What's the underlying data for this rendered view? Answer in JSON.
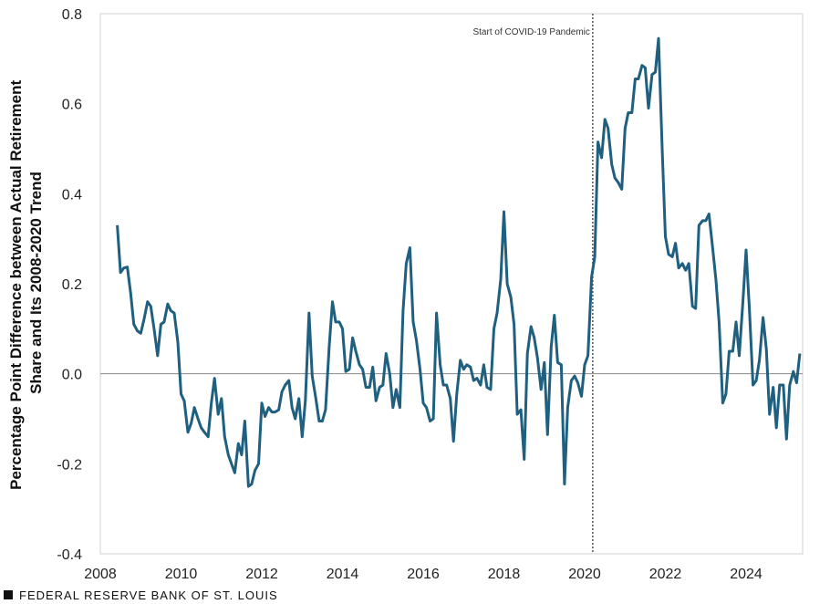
{
  "chart_data": {
    "type": "line",
    "ylabel_lines": [
      "Percentage Point Difference between Actual Retirement",
      "Share and Its 2008-2020 Trend"
    ],
    "xlim": [
      2008,
      2025.4
    ],
    "ylim": [
      -0.4,
      0.8
    ],
    "x_ticks": [
      "2008",
      "2010",
      "2012",
      "2014",
      "2016",
      "2018",
      "2020",
      "2022",
      "2024"
    ],
    "y_ticks": [
      "-0.4",
      "-0.2",
      "0.0",
      "0.2",
      "0.4",
      "0.6",
      "0.8"
    ],
    "annotation": {
      "text": "Start of COVID-19 Pandemic",
      "x": 2020.2
    },
    "line_color": "#1f5f7f",
    "series": [
      {
        "points": [
          [
            2008.42,
            0.33
          ],
          [
            2008.5,
            0.225
          ],
          [
            2008.58,
            0.235
          ],
          [
            2008.67,
            0.237
          ],
          [
            2008.75,
            0.18
          ],
          [
            2008.83,
            0.11
          ],
          [
            2008.92,
            0.095
          ],
          [
            2009.0,
            0.09
          ],
          [
            2009.08,
            0.12
          ],
          [
            2009.17,
            0.16
          ],
          [
            2009.25,
            0.15
          ],
          [
            2009.33,
            0.1
          ],
          [
            2009.42,
            0.04
          ],
          [
            2009.5,
            0.11
          ],
          [
            2009.58,
            0.115
          ],
          [
            2009.67,
            0.155
          ],
          [
            2009.75,
            0.14
          ],
          [
            2009.83,
            0.135
          ],
          [
            2009.92,
            0.07
          ],
          [
            2010.0,
            -0.045
          ],
          [
            2010.08,
            -0.06
          ],
          [
            2010.17,
            -0.13
          ],
          [
            2010.25,
            -0.11
          ],
          [
            2010.33,
            -0.075
          ],
          [
            2010.42,
            -0.1
          ],
          [
            2010.5,
            -0.12
          ],
          [
            2010.58,
            -0.13
          ],
          [
            2010.67,
            -0.14
          ],
          [
            2010.75,
            -0.065
          ],
          [
            2010.83,
            -0.01
          ],
          [
            2010.92,
            -0.09
          ],
          [
            2011.0,
            -0.055
          ],
          [
            2011.08,
            -0.14
          ],
          [
            2011.17,
            -0.18
          ],
          [
            2011.25,
            -0.2
          ],
          [
            2011.33,
            -0.22
          ],
          [
            2011.42,
            -0.155
          ],
          [
            2011.5,
            -0.18
          ],
          [
            2011.58,
            -0.105
          ],
          [
            2011.67,
            -0.25
          ],
          [
            2011.75,
            -0.245
          ],
          [
            2011.83,
            -0.215
          ],
          [
            2011.92,
            -0.2
          ],
          [
            2012.0,
            -0.065
          ],
          [
            2012.08,
            -0.095
          ],
          [
            2012.17,
            -0.075
          ],
          [
            2012.25,
            -0.085
          ],
          [
            2012.33,
            -0.085
          ],
          [
            2012.42,
            -0.08
          ],
          [
            2012.5,
            -0.04
          ],
          [
            2012.58,
            -0.025
          ],
          [
            2012.67,
            -0.015
          ],
          [
            2012.75,
            -0.075
          ],
          [
            2012.83,
            -0.1
          ],
          [
            2012.92,
            -0.055
          ],
          [
            2013.0,
            -0.14
          ],
          [
            2013.08,
            -0.06
          ],
          [
            2013.17,
            0.135
          ],
          [
            2013.25,
            -0.005
          ],
          [
            2013.33,
            -0.05
          ],
          [
            2013.42,
            -0.105
          ],
          [
            2013.5,
            -0.105
          ],
          [
            2013.58,
            -0.08
          ],
          [
            2013.67,
            0.06
          ],
          [
            2013.75,
            0.16
          ],
          [
            2013.83,
            0.115
          ],
          [
            2013.92,
            0.115
          ],
          [
            2014.0,
            0.1
          ],
          [
            2014.08,
            0.005
          ],
          [
            2014.17,
            0.01
          ],
          [
            2014.25,
            0.08
          ],
          [
            2014.33,
            0.05
          ],
          [
            2014.42,
            0.02
          ],
          [
            2014.5,
            0.01
          ],
          [
            2014.58,
            -0.03
          ],
          [
            2014.67,
            -0.03
          ],
          [
            2014.75,
            0.015
          ],
          [
            2014.83,
            -0.06
          ],
          [
            2014.92,
            -0.03
          ],
          [
            2015.0,
            -0.025
          ],
          [
            2015.08,
            0.045
          ],
          [
            2015.17,
            0.0
          ],
          [
            2015.25,
            -0.075
          ],
          [
            2015.33,
            -0.035
          ],
          [
            2015.42,
            -0.075
          ],
          [
            2015.5,
            0.14
          ],
          [
            2015.58,
            0.245
          ],
          [
            2015.67,
            0.28
          ],
          [
            2015.75,
            0.115
          ],
          [
            2015.83,
            0.075
          ],
          [
            2015.92,
            0.01
          ],
          [
            2016.0,
            -0.065
          ],
          [
            2016.08,
            -0.075
          ],
          [
            2016.17,
            -0.105
          ],
          [
            2016.25,
            -0.1
          ],
          [
            2016.33,
            0.135
          ],
          [
            2016.42,
            0.02
          ],
          [
            2016.5,
            -0.025
          ],
          [
            2016.58,
            -0.025
          ],
          [
            2016.67,
            -0.055
          ],
          [
            2016.75,
            -0.15
          ],
          [
            2016.83,
            -0.045
          ],
          [
            2016.92,
            0.03
          ],
          [
            2017.0,
            0.01
          ],
          [
            2017.08,
            0.02
          ],
          [
            2017.17,
            0.015
          ],
          [
            2017.25,
            -0.015
          ],
          [
            2017.33,
            -0.01
          ],
          [
            2017.42,
            -0.025
          ],
          [
            2017.5,
            0.02
          ],
          [
            2017.58,
            -0.03
          ],
          [
            2017.67,
            -0.035
          ],
          [
            2017.75,
            0.1
          ],
          [
            2017.83,
            0.135
          ],
          [
            2017.92,
            0.21
          ],
          [
            2018.0,
            0.36
          ],
          [
            2018.08,
            0.2
          ],
          [
            2018.17,
            0.17
          ],
          [
            2018.25,
            0.11
          ],
          [
            2018.33,
            -0.09
          ],
          [
            2018.42,
            -0.08
          ],
          [
            2018.5,
            -0.19
          ],
          [
            2018.58,
            0.045
          ],
          [
            2018.67,
            0.105
          ],
          [
            2018.75,
            0.08
          ],
          [
            2018.83,
            0.035
          ],
          [
            2018.92,
            -0.035
          ],
          [
            2019.0,
            0.025
          ],
          [
            2019.08,
            -0.135
          ],
          [
            2019.17,
            0.06
          ],
          [
            2019.25,
            0.13
          ],
          [
            2019.33,
            0.025
          ],
          [
            2019.42,
            0.02
          ],
          [
            2019.5,
            -0.245
          ],
          [
            2019.58,
            -0.075
          ],
          [
            2019.67,
            -0.015
          ],
          [
            2019.75,
            -0.005
          ],
          [
            2019.83,
            -0.02
          ],
          [
            2019.92,
            -0.05
          ],
          [
            2020.0,
            0.02
          ],
          [
            2020.08,
            0.04
          ],
          [
            2020.17,
            0.215
          ],
          [
            2020.25,
            0.26
          ],
          [
            2020.33,
            0.515
          ],
          [
            2020.42,
            0.48
          ],
          [
            2020.5,
            0.565
          ],
          [
            2020.58,
            0.545
          ],
          [
            2020.67,
            0.465
          ],
          [
            2020.75,
            0.435
          ],
          [
            2020.83,
            0.425
          ],
          [
            2020.92,
            0.41
          ],
          [
            2021.0,
            0.545
          ],
          [
            2021.08,
            0.58
          ],
          [
            2021.17,
            0.58
          ],
          [
            2021.25,
            0.655
          ],
          [
            2021.33,
            0.655
          ],
          [
            2021.42,
            0.685
          ],
          [
            2021.5,
            0.68
          ],
          [
            2021.58,
            0.59
          ],
          [
            2021.67,
            0.665
          ],
          [
            2021.75,
            0.67
          ],
          [
            2021.83,
            0.745
          ],
          [
            2021.92,
            0.5
          ],
          [
            2022.0,
            0.305
          ],
          [
            2022.08,
            0.265
          ],
          [
            2022.17,
            0.26
          ],
          [
            2022.25,
            0.29
          ],
          [
            2022.33,
            0.235
          ],
          [
            2022.42,
            0.245
          ],
          [
            2022.5,
            0.23
          ],
          [
            2022.58,
            0.245
          ],
          [
            2022.67,
            0.15
          ],
          [
            2022.75,
            0.145
          ],
          [
            2022.83,
            0.33
          ],
          [
            2022.92,
            0.34
          ],
          [
            2023.0,
            0.34
          ],
          [
            2023.08,
            0.355
          ],
          [
            2023.17,
            0.28
          ],
          [
            2023.25,
            0.21
          ],
          [
            2023.33,
            0.115
          ],
          [
            2023.42,
            -0.065
          ],
          [
            2023.5,
            -0.045
          ],
          [
            2023.58,
            0.05
          ],
          [
            2023.67,
            0.05
          ],
          [
            2023.75,
            0.115
          ],
          [
            2023.83,
            0.04
          ],
          [
            2023.92,
            0.16
          ],
          [
            2024.0,
            0.275
          ],
          [
            2024.08,
            0.145
          ],
          [
            2024.17,
            -0.025
          ],
          [
            2024.25,
            -0.015
          ],
          [
            2024.33,
            0.03
          ],
          [
            2024.42,
            0.125
          ],
          [
            2024.5,
            0.055
          ],
          [
            2024.58,
            -0.09
          ],
          [
            2024.67,
            -0.03
          ],
          [
            2024.75,
            -0.12
          ],
          [
            2024.83,
            -0.025
          ],
          [
            2024.92,
            -0.025
          ],
          [
            2025.0,
            -0.145
          ],
          [
            2025.08,
            -0.025
          ],
          [
            2025.17,
            0.005
          ],
          [
            2025.25,
            -0.02
          ],
          [
            2025.33,
            0.045
          ]
        ]
      }
    ]
  },
  "footer": {
    "text": "FEDERAL RESERVE BANK OF ST. LOUIS"
  }
}
